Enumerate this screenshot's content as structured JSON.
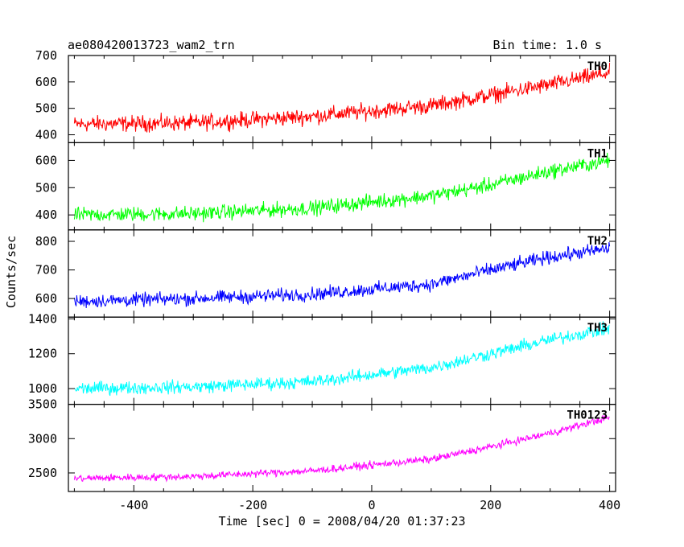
{
  "header": {
    "left_title": "ae080420013723_wam2_trn",
    "right_title": "Bin time: 1.0 s"
  },
  "axes": {
    "xlabel": "Time [sec] 0 = 2008/04/20 01:37:23",
    "ylabel": "Counts/sec"
  },
  "chart_data": {
    "type": "line",
    "title": "ae080420013723_wam2_trn",
    "subtitle": "Bin time: 1.0 s",
    "xlabel": "Time [sec] 0 = 2008/04/20 01:37:23",
    "ylabel": "Counts/sec",
    "xlim": [
      -510,
      410
    ],
    "x_ticks": [
      -400,
      -200,
      0,
      200,
      400
    ],
    "x_range_data": [
      -500,
      400
    ],
    "bin_time_s": 1.0,
    "grid": false,
    "legend": "none",
    "series": [
      {
        "name": "TH0",
        "color": "#ff0000",
        "ylim": [
          370,
          700
        ],
        "y_ticks": [
          400,
          500,
          600,
          700
        ],
        "trend": [
          [
            -500,
            440
          ],
          [
            -300,
            445
          ],
          [
            -100,
            470
          ],
          [
            100,
            510
          ],
          [
            200,
            550
          ],
          [
            300,
            590
          ],
          [
            400,
            635
          ]
        ],
        "noise_amplitude": 45
      },
      {
        "name": "TH1",
        "color": "#00ff00",
        "ylim": [
          345,
          665
        ],
        "y_ticks": [
          400,
          500,
          600
        ],
        "trend": [
          [
            -500,
            400
          ],
          [
            -300,
            405
          ],
          [
            -100,
            425
          ],
          [
            100,
            470
          ],
          [
            200,
            510
          ],
          [
            300,
            560
          ],
          [
            400,
            600
          ]
        ],
        "noise_amplitude": 40
      },
      {
        "name": "TH2",
        "color": "#0000ff",
        "ylim": [
          535,
          840
        ],
        "y_ticks": [
          600,
          700,
          800
        ],
        "trend": [
          [
            -500,
            590
          ],
          [
            -300,
            600
          ],
          [
            -100,
            615
          ],
          [
            100,
            650
          ],
          [
            200,
            700
          ],
          [
            300,
            745
          ],
          [
            400,
            775
          ]
        ],
        "noise_amplitude": 35
      },
      {
        "name": "TH3",
        "color": "#00ffff",
        "ylim": [
          910,
          1410
        ],
        "y_ticks": [
          1000,
          1200,
          1400
        ],
        "trend": [
          [
            -500,
            1000
          ],
          [
            -300,
            1010
          ],
          [
            -100,
            1040
          ],
          [
            100,
            1120
          ],
          [
            200,
            1200
          ],
          [
            300,
            1280
          ],
          [
            400,
            1345
          ]
        ],
        "noise_amplitude": 55
      },
      {
        "name": "TH0123",
        "color": "#ff00ff",
        "ylim": [
          2230,
          3500
        ],
        "y_ticks": [
          2500,
          3000,
          3500
        ],
        "trend": [
          [
            -500,
            2420
          ],
          [
            -300,
            2450
          ],
          [
            -100,
            2530
          ],
          [
            100,
            2700
          ],
          [
            200,
            2880
          ],
          [
            300,
            3080
          ],
          [
            400,
            3310
          ]
        ],
        "noise_amplitude": 80
      }
    ]
  }
}
